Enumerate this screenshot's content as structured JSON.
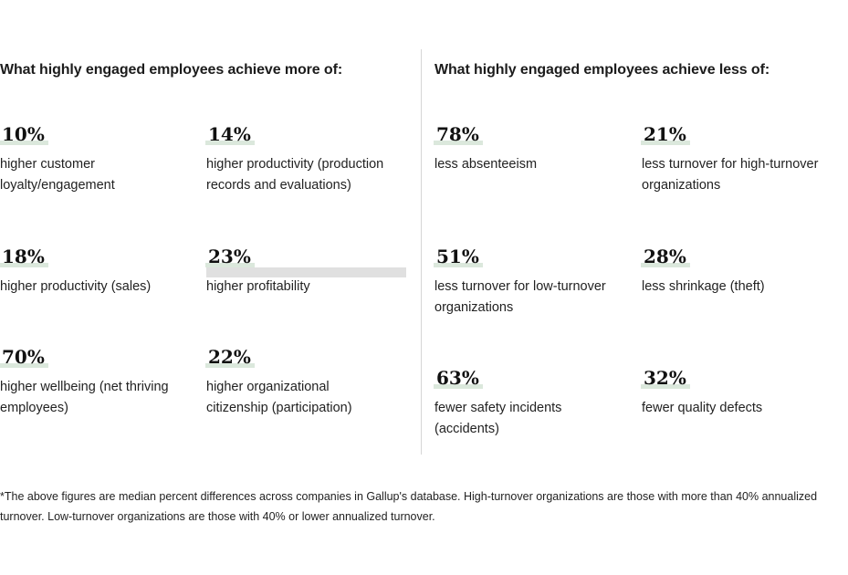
{
  "more": {
    "heading": "What highly engaged employees achieve more of:",
    "stats": [
      {
        "value": "10%",
        "label": "higher customer loyalty/engagement"
      },
      {
        "value": "14%",
        "label": "higher productivity (production records and evaluations)"
      },
      {
        "value": "18%",
        "label": "higher productivity (sales)"
      },
      {
        "value": "23%",
        "label": "higher profitability"
      },
      {
        "value": "70%",
        "label": "higher wellbeing (net thriving employees)"
      },
      {
        "value": "22%",
        "label": "higher organizational citizenship (participation)"
      }
    ]
  },
  "less": {
    "heading": "What highly engaged employees achieve less of:",
    "stats": [
      {
        "value": "78%",
        "label": "less absenteeism"
      },
      {
        "value": "21%",
        "label": "less turnover for high-turnover organizations"
      },
      {
        "value": "51%",
        "label": "less turnover for low-turnover organizations"
      },
      {
        "value": "28%",
        "label": "less shrinkage (theft)"
      },
      {
        "value": "63%",
        "label": "fewer safety incidents (accidents)"
      },
      {
        "value": "32%",
        "label": "fewer quality defects"
      }
    ]
  },
  "footnote": "*The above figures are median percent differences across companies in Gallup's database. High-turnover organizations are those with more than 40% annualized turnover. Low-turnover organizations are those with 40% or lower annualized turnover."
}
